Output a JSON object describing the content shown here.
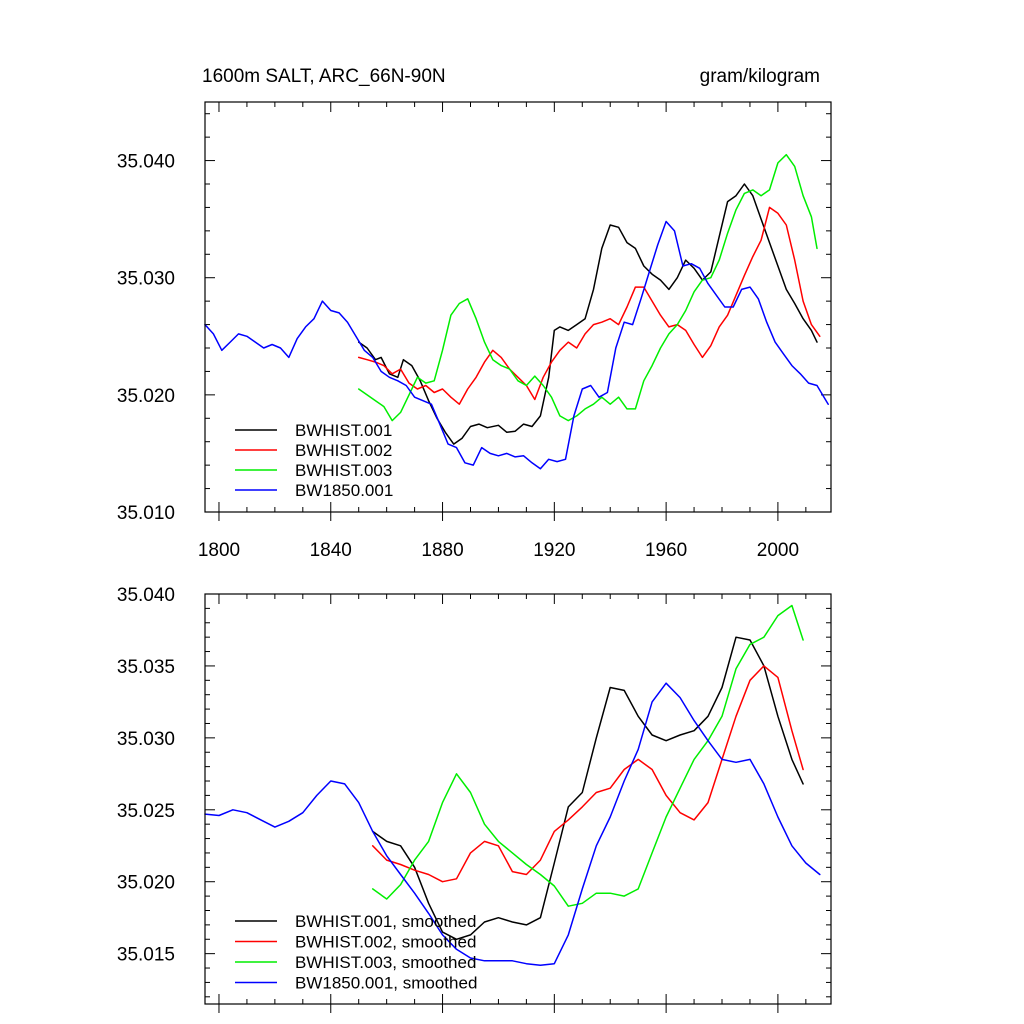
{
  "chart_data": [
    {
      "type": "line",
      "title_left": "1600m SALT, ARC_66N-90N",
      "title_right": "gram/kilogram",
      "xlim": [
        1795,
        2019
      ],
      "ylim": [
        35.01,
        35.045
      ],
      "xticks": [
        1800,
        1840,
        1880,
        1920,
        1960,
        2000
      ],
      "yticks": [
        35.01,
        35.02,
        35.03,
        35.04
      ],
      "ytick_labels": [
        "35.010",
        "35.020",
        "35.030",
        "35.040"
      ],
      "legend": [
        "BWHIST.001",
        "BWHIST.002",
        "BWHIST.003",
        "BW1850.001"
      ],
      "series": [
        {
          "name": "BWHIST.001",
          "color": "#000000",
          "x": [
            1850,
            1853,
            1856,
            1858,
            1861,
            1864,
            1866,
            1869,
            1872,
            1875,
            1878,
            1881,
            1884,
            1887,
            1890,
            1893,
            1896,
            1900,
            1903,
            1906,
            1909,
            1912,
            1915,
            1918,
            1920,
            1922,
            1925,
            1928,
            1931,
            1934,
            1937,
            1940,
            1943,
            1946,
            1949,
            1952,
            1955,
            1958,
            1961,
            1964,
            1967,
            1970,
            1973,
            1976,
            1979,
            1982,
            1985,
            1988,
            1991,
            1994,
            1997,
            2000,
            2003,
            2006,
            2009,
            2012,
            2014
          ],
          "y": [
            35.0245,
            35.024,
            35.023,
            35.0232,
            35.0218,
            35.0215,
            35.023,
            35.0225,
            35.0212,
            35.0195,
            35.018,
            35.0168,
            35.0158,
            35.0163,
            35.0173,
            35.0175,
            35.0172,
            35.0174,
            35.0168,
            35.0169,
            35.0175,
            35.0173,
            35.0182,
            35.0215,
            35.0255,
            35.0258,
            35.0255,
            35.026,
            35.0265,
            35.029,
            35.0325,
            35.0345,
            35.0343,
            35.033,
            35.0325,
            35.031,
            35.0303,
            35.0298,
            35.029,
            35.03,
            35.0315,
            35.0308,
            35.0298,
            35.0305,
            35.0335,
            35.0365,
            35.037,
            35.038,
            35.037,
            35.035,
            35.033,
            35.031,
            35.029,
            35.0278,
            35.0265,
            35.0255,
            35.0245
          ]
        },
        {
          "name": "BWHIST.002",
          "color": "#ff0000",
          "x": [
            1850,
            1853,
            1856,
            1859,
            1862,
            1865,
            1868,
            1871,
            1874,
            1877,
            1880,
            1883,
            1886,
            1889,
            1892,
            1895,
            1898,
            1901,
            1904,
            1907,
            1910,
            1913,
            1916,
            1919,
            1922,
            1925,
            1928,
            1931,
            1934,
            1937,
            1940,
            1943,
            1946,
            1949,
            1952,
            1955,
            1958,
            1961,
            1964,
            1967,
            1970,
            1973,
            1976,
            1979,
            1982,
            1985,
            1988,
            1991,
            1994,
            1997,
            2000,
            2003,
            2006,
            2009,
            2012,
            2015
          ],
          "y": [
            35.0232,
            35.023,
            35.0228,
            35.0225,
            35.0218,
            35.0222,
            35.021,
            35.0205,
            35.0208,
            35.0202,
            35.0205,
            35.0198,
            35.0192,
            35.0205,
            35.0215,
            35.0228,
            35.0238,
            35.0232,
            35.0222,
            35.0215,
            35.0208,
            35.0196,
            35.0215,
            35.0228,
            35.0238,
            35.0245,
            35.024,
            35.0252,
            35.026,
            35.0262,
            35.0265,
            35.026,
            35.0275,
            35.0292,
            35.0292,
            35.028,
            35.0268,
            35.0258,
            35.026,
            35.0255,
            35.0243,
            35.0232,
            35.0242,
            35.0258,
            35.0268,
            35.0285,
            35.0302,
            35.0318,
            35.0332,
            35.036,
            35.0355,
            35.0345,
            35.0315,
            35.028,
            35.026,
            35.025
          ]
        },
        {
          "name": "BWHIST.003",
          "color": "#00ee00",
          "x": [
            1850,
            1853,
            1856,
            1859,
            1862,
            1865,
            1868,
            1871,
            1874,
            1877,
            1880,
            1883,
            1886,
            1889,
            1892,
            1895,
            1898,
            1901,
            1904,
            1907,
            1910,
            1913,
            1916,
            1919,
            1922,
            1925,
            1928,
            1931,
            1934,
            1937,
            1940,
            1943,
            1946,
            1949,
            1952,
            1955,
            1958,
            1961,
            1964,
            1967,
            1970,
            1973,
            1976,
            1979,
            1982,
            1985,
            1988,
            1991,
            1994,
            1997,
            2000,
            2003,
            2006,
            2009,
            2012,
            2014
          ],
          "y": [
            35.0205,
            35.02,
            35.0195,
            35.019,
            35.0178,
            35.0185,
            35.02,
            35.0215,
            35.021,
            35.0212,
            35.0238,
            35.0268,
            35.0278,
            35.0282,
            35.0265,
            35.0245,
            35.023,
            35.0225,
            35.0222,
            35.0212,
            35.0208,
            35.0216,
            35.0208,
            35.0198,
            35.0182,
            35.0178,
            35.0182,
            35.0188,
            35.0192,
            35.0198,
            35.0192,
            35.0198,
            35.0188,
            35.0188,
            35.0212,
            35.0225,
            35.024,
            35.0252,
            35.026,
            35.0272,
            35.0288,
            35.0298,
            35.03,
            35.0315,
            35.0338,
            35.0358,
            35.0372,
            35.0375,
            35.037,
            35.0375,
            35.0398,
            35.0405,
            35.0395,
            35.037,
            35.0352,
            35.0325
          ]
        },
        {
          "name": "BW1850.001",
          "color": "#0000ff",
          "x": [
            1795,
            1798,
            1801,
            1804,
            1807,
            1810,
            1813,
            1816,
            1819,
            1822,
            1825,
            1828,
            1831,
            1834,
            1837,
            1840,
            1843,
            1846,
            1849,
            1852,
            1855,
            1858,
            1861,
            1864,
            1867,
            1870,
            1873,
            1876,
            1879,
            1882,
            1885,
            1888,
            1891,
            1894,
            1897,
            1900,
            1903,
            1906,
            1909,
            1912,
            1915,
            1918,
            1921,
            1924,
            1927,
            1930,
            1933,
            1936,
            1939,
            1942,
            1945,
            1948,
            1951,
            1954,
            1957,
            1960,
            1963,
            1966,
            1969,
            1972,
            1975,
            1978,
            1981,
            1984,
            1987,
            1990,
            1993,
            1996,
            1999,
            2002,
            2005,
            2008,
            2011,
            2014,
            2018
          ],
          "y": [
            35.026,
            35.0252,
            35.0238,
            35.0245,
            35.0252,
            35.025,
            35.0245,
            35.024,
            35.0243,
            35.024,
            35.0232,
            35.0248,
            35.0258,
            35.0265,
            35.028,
            35.0272,
            35.027,
            35.0262,
            35.025,
            35.0238,
            35.0232,
            35.022,
            35.0215,
            35.0212,
            35.0208,
            35.0198,
            35.0195,
            35.0192,
            35.0175,
            35.0158,
            35.0155,
            35.0142,
            35.014,
            35.0155,
            35.015,
            35.0148,
            35.015,
            35.0147,
            35.0148,
            35.0142,
            35.0137,
            35.0145,
            35.0143,
            35.0145,
            35.0182,
            35.0205,
            35.0208,
            35.0198,
            35.0202,
            35.024,
            35.0262,
            35.026,
            35.0282,
            35.0305,
            35.0328,
            35.0348,
            35.034,
            35.031,
            35.0312,
            35.0308,
            35.0295,
            35.0285,
            35.0275,
            35.0275,
            35.029,
            35.0292,
            35.0282,
            35.0262,
            35.0245,
            35.0235,
            35.0225,
            35.0218,
            35.021,
            35.0208,
            35.0192
          ]
        }
      ]
    },
    {
      "type": "line",
      "xlim": [
        1795,
        2019
      ],
      "ylim": [
        35.0115,
        35.04
      ],
      "xticks": [
        1800,
        1840,
        1880,
        1920,
        1960,
        2000
      ],
      "yticks": [
        35.015,
        35.02,
        35.025,
        35.03,
        35.035,
        35.04
      ],
      "ytick_labels": [
        "35.015",
        "35.020",
        "35.025",
        "35.030",
        "35.035",
        "35.040"
      ],
      "legend": [
        "BWHIST.001, smoothed",
        "BWHIST.002, smoothed",
        "BWHIST.003, smoothed",
        "BW1850.001, smoothed"
      ],
      "series": [
        {
          "name": "BWHIST.001, smoothed",
          "color": "#000000",
          "x": [
            1855,
            1860,
            1865,
            1870,
            1875,
            1880,
            1885,
            1890,
            1895,
            1900,
            1905,
            1910,
            1915,
            1920,
            1925,
            1930,
            1935,
            1940,
            1945,
            1950,
            1955,
            1960,
            1965,
            1970,
            1975,
            1980,
            1985,
            1990,
            1995,
            2000,
            2005,
            2009
          ],
          "y": [
            35.0235,
            35.0228,
            35.0225,
            35.021,
            35.0185,
            35.0165,
            35.016,
            35.0163,
            35.0172,
            35.0175,
            35.0172,
            35.017,
            35.0175,
            35.0213,
            35.0252,
            35.0262,
            35.03,
            35.0335,
            35.0333,
            35.0315,
            35.0302,
            35.0298,
            35.0302,
            35.0305,
            35.0315,
            35.0335,
            35.037,
            35.0368,
            35.035,
            35.0315,
            35.0285,
            35.0268
          ]
        },
        {
          "name": "BWHIST.002, smoothed",
          "color": "#ff0000",
          "x": [
            1855,
            1860,
            1865,
            1870,
            1875,
            1880,
            1885,
            1890,
            1895,
            1900,
            1905,
            1910,
            1915,
            1920,
            1925,
            1930,
            1935,
            1940,
            1945,
            1950,
            1955,
            1960,
            1965,
            1970,
            1975,
            1980,
            1985,
            1990,
            1995,
            2000,
            2005,
            2009
          ],
          "y": [
            35.0225,
            35.0215,
            35.0212,
            35.0208,
            35.0205,
            35.02,
            35.0202,
            35.022,
            35.0228,
            35.0225,
            35.0207,
            35.0205,
            35.0215,
            35.0235,
            35.0243,
            35.0252,
            35.0262,
            35.0265,
            35.0278,
            35.0285,
            35.0278,
            35.026,
            35.0248,
            35.0243,
            35.0255,
            35.0285,
            35.0315,
            35.034,
            35.035,
            35.0342,
            35.0305,
            35.0278
          ]
        },
        {
          "name": "BWHIST.003, smoothed",
          "color": "#00ee00",
          "x": [
            1855,
            1860,
            1865,
            1870,
            1875,
            1880,
            1885,
            1890,
            1895,
            1900,
            1905,
            1910,
            1915,
            1920,
            1925,
            1930,
            1935,
            1940,
            1945,
            1950,
            1955,
            1960,
            1965,
            1970,
            1975,
            1980,
            1985,
            1990,
            1995,
            2000,
            2005,
            2009
          ],
          "y": [
            35.0195,
            35.0188,
            35.0198,
            35.0215,
            35.0228,
            35.0255,
            35.0275,
            35.0262,
            35.024,
            35.0228,
            35.022,
            35.0212,
            35.0205,
            35.0197,
            35.0183,
            35.0185,
            35.0192,
            35.0192,
            35.019,
            35.0195,
            35.022,
            35.0245,
            35.0265,
            35.0285,
            35.0298,
            35.0315,
            35.0348,
            35.0365,
            35.037,
            35.0385,
            35.0392,
            35.0368
          ]
        },
        {
          "name": "BW1850.001, smoothed",
          "color": "#0000ff",
          "x": [
            1795,
            1800,
            1805,
            1810,
            1815,
            1820,
            1825,
            1830,
            1835,
            1840,
            1845,
            1850,
            1855,
            1860,
            1865,
            1870,
            1875,
            1880,
            1885,
            1890,
            1895,
            1900,
            1905,
            1910,
            1915,
            1920,
            1925,
            1930,
            1935,
            1940,
            1945,
            1950,
            1955,
            1960,
            1965,
            1970,
            1975,
            1980,
            1985,
            1990,
            1995,
            2000,
            2005,
            2010,
            2015
          ],
          "y": [
            35.0247,
            35.0246,
            35.025,
            35.0248,
            35.0243,
            35.0238,
            35.0242,
            35.0248,
            35.026,
            35.027,
            35.0268,
            35.0255,
            35.0235,
            35.0218,
            35.0205,
            35.0192,
            35.0178,
            35.0163,
            35.0153,
            35.0147,
            35.0145,
            35.0145,
            35.0145,
            35.0143,
            35.0142,
            35.0143,
            35.0163,
            35.0195,
            35.0225,
            35.0245,
            35.027,
            35.0292,
            35.0325,
            35.0338,
            35.0328,
            35.0312,
            35.0298,
            35.0285,
            35.0283,
            35.0285,
            35.0268,
            35.0245,
            35.0225,
            35.0213,
            35.0205
          ]
        }
      ]
    }
  ]
}
